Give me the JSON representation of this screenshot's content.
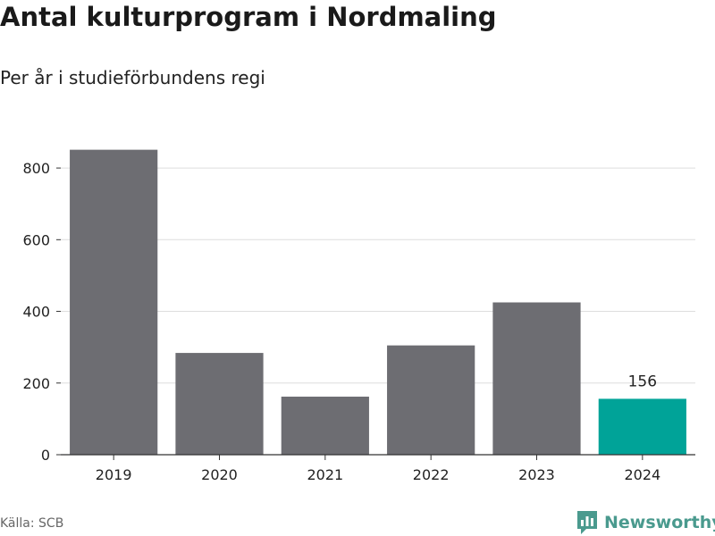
{
  "title": "Antal kulturprogram i Nordmaling",
  "subtitle": "Per år i studieförbundens regi",
  "source": "Källa: SCB",
  "brand": "Newsworthy",
  "colors": {
    "bar": "#6d6d72",
    "highlight": "#00a398",
    "grid": "#dddddd",
    "axis": "#333333"
  },
  "chart_data": {
    "type": "bar",
    "categories": [
      "2019",
      "2020",
      "2021",
      "2022",
      "2023",
      "2024"
    ],
    "values": [
      851,
      284,
      162,
      305,
      425,
      156
    ],
    "highlight_index": 5,
    "data_labels": {
      "2024": "156"
    },
    "yticks": [
      0,
      200,
      400,
      600,
      800
    ],
    "ylim": [
      0,
      870
    ],
    "grid": true,
    "xlabel": "",
    "ylabel": ""
  }
}
